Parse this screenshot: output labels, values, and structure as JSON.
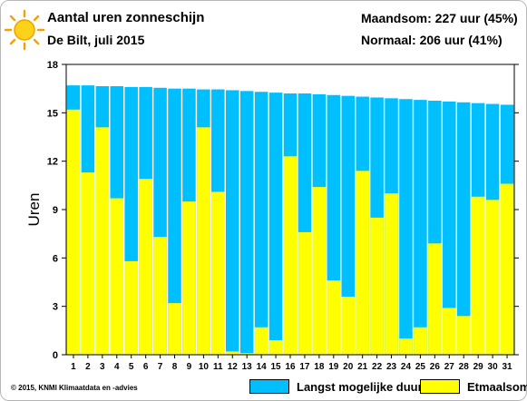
{
  "header": {
    "title": "Aantal uren zonneschijn",
    "subtitle": "De Bilt, juli 2015",
    "month_total": "Maandsom: 227 uur (45%)",
    "normal": "Normaal: 206 uur (41%)"
  },
  "footer": {
    "credit": "© 2015, KNMI Klimaatdata en -advies"
  },
  "colors": {
    "max_duration": "#00bfff",
    "daily_sum": "#ffff00"
  },
  "chart_data": {
    "type": "bar",
    "ylabel": "Uren",
    "ylim": [
      0,
      18
    ],
    "yticks": [
      0,
      3,
      6,
      9,
      12,
      15,
      18
    ],
    "categories": [
      "1",
      "2",
      "3",
      "4",
      "5",
      "6",
      "7",
      "8",
      "9",
      "10",
      "11",
      "12",
      "13",
      "14",
      "15",
      "16",
      "17",
      "18",
      "19",
      "20",
      "21",
      "22",
      "23",
      "24",
      "25",
      "26",
      "27",
      "28",
      "29",
      "30",
      "31"
    ],
    "series": [
      {
        "name": "Langst mogelijke duur",
        "values": [
          16.7,
          16.7,
          16.65,
          16.65,
          16.6,
          16.6,
          16.55,
          16.5,
          16.5,
          16.45,
          16.45,
          16.4,
          16.35,
          16.3,
          16.25,
          16.2,
          16.2,
          16.15,
          16.1,
          16.05,
          16.0,
          15.95,
          15.9,
          15.85,
          15.8,
          15.75,
          15.7,
          15.65,
          15.6,
          15.55,
          15.5
        ]
      },
      {
        "name": "Etmaalsom",
        "values": [
          15.2,
          11.3,
          14.1,
          9.7,
          5.8,
          10.9,
          7.3,
          3.2,
          9.5,
          14.1,
          10.1,
          0.2,
          0.1,
          1.7,
          0.9,
          12.3,
          7.6,
          10.4,
          4.6,
          3.6,
          11.4,
          8.5,
          10.0,
          1.0,
          1.7,
          6.9,
          2.9,
          2.4,
          9.8,
          9.6,
          10.6
        ]
      }
    ],
    "grid": false,
    "legend_position": "bottom-right"
  }
}
